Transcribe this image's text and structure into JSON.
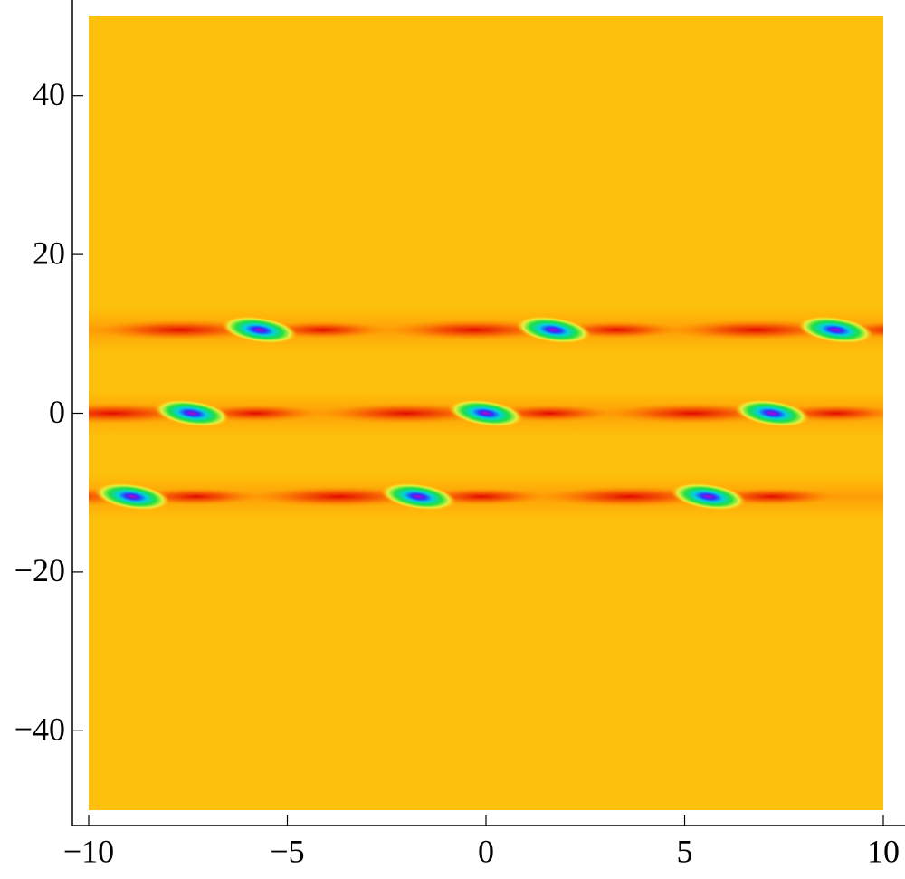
{
  "chart_data": {
    "type": "density",
    "background_color": "#fec10b",
    "xlim": [
      -10,
      10
    ],
    "ylim": [
      -50,
      50
    ],
    "xticks": [
      {
        "value": -10,
        "label": "−10"
      },
      {
        "value": -5,
        "label": "−5"
      },
      0,
      5,
      10
    ],
    "yticks": [
      {
        "value": -40,
        "label": "−40"
      },
      {
        "value": -20,
        "label": "−20"
      },
      0,
      20,
      40
    ],
    "x": [
      -5.7,
      1.7,
      8.8,
      -7.4,
      0,
      7.2,
      -8.9,
      -1.7,
      5.6
    ],
    "values": [
      10.5,
      10.5,
      10.5,
      0,
      0,
      0,
      -10.5,
      -10.5,
      -10.5
    ]
  }
}
